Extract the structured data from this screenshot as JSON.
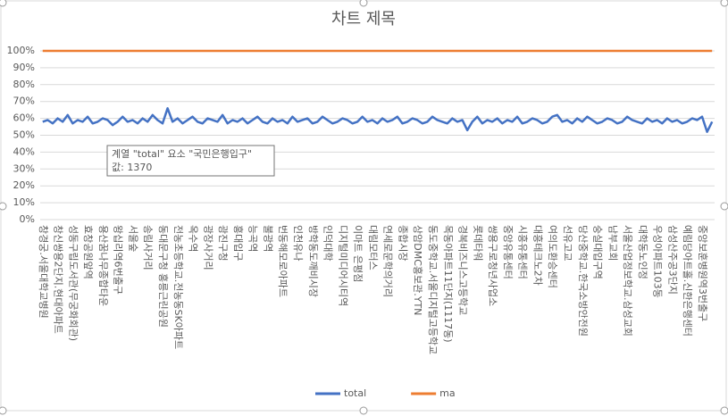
{
  "chart_data": {
    "type": "line",
    "title": "차트 제목",
    "categories": [
      "창경궁.서울대학교병원",
      null,
      null,
      "창신쌍용2단지.현대아파트",
      null,
      null,
      "성동구립도서관(무궁화회관)",
      null,
      null,
      "효창공원앞역",
      null,
      null,
      "용산꿈나무종합타운",
      null,
      null,
      "왕십리역6번출구",
      null,
      null,
      "서울숲",
      null,
      null,
      "송림사거리",
      null,
      null,
      "동대문구청 홍릉근린공원",
      null,
      null,
      "전농초등학교.전농동SK아파트",
      null,
      null,
      "옥수역",
      null,
      null,
      "광장사거리",
      null,
      null,
      "광진구청",
      null,
      null,
      "홍대입구",
      null,
      null,
      "능곡역",
      null,
      null,
      "불광역",
      null,
      null,
      "번동해모로아파트",
      null,
      null,
      "인천유나",
      null,
      null,
      "방학동도깨비시장",
      null,
      null,
      "인덕대학",
      null,
      null,
      "디지털미디어시티역",
      null,
      null,
      "이마트 은평점",
      null,
      null,
      "대림모터스",
      null,
      null,
      "연세로문학의거리",
      null,
      null,
      "종합시장",
      null,
      null,
      "상암DMC홍보관.YTN",
      null,
      null,
      "동도중학교.서울디지털고등학교",
      null,
      null,
      "목동아파트11단지(1117동)",
      null,
      null,
      "경복비즈니스고등학교",
      null,
      null,
      "롯데타워",
      null,
      null,
      "쌍용구로청년사업소",
      null,
      null,
      "중앙유통센터",
      null,
      null,
      "시흥유통센터",
      null,
      null,
      "대흥테크노2차",
      null,
      null,
      "여의도환승센터",
      null,
      null,
      "선유고교",
      null,
      null,
      "당산중학교.한국소방안전원",
      null,
      null,
      "숭실대입구역",
      null,
      null,
      "남부교회",
      null,
      null,
      "서울산업정보학교.삼성교회",
      null,
      null,
      "대학동노인정",
      null,
      null,
      "우성아파트103동",
      null,
      null,
      "삼성산주공3단지",
      null,
      null,
      "예림당아트홀.신한은행센터",
      null,
      null,
      "중앙보훈병원역3번출구",
      null,
      null
    ],
    "series": [
      {
        "name": "total",
        "color": "#4472c4",
        "values": [
          58,
          59,
          57,
          60,
          58,
          62,
          57,
          59,
          58,
          61,
          57,
          58,
          60,
          59,
          56,
          58,
          61,
          58,
          59,
          57,
          60,
          58,
          62,
          59,
          57,
          66,
          58,
          60,
          57,
          59,
          61,
          58,
          57,
          60,
          59,
          58,
          62,
          57,
          59,
          58,
          60,
          57,
          59,
          61,
          58,
          57,
          60,
          58,
          59,
          57,
          61,
          58,
          59,
          60,
          57,
          58,
          61,
          59,
          57,
          58,
          60,
          59,
          57,
          58,
          61,
          58,
          59,
          57,
          60,
          58,
          59,
          61,
          57,
          58,
          60,
          59,
          57,
          58,
          61,
          59,
          58,
          57,
          60,
          58,
          59,
          53,
          58,
          61,
          57,
          59,
          58,
          60,
          57,
          59,
          58,
          61,
          57,
          58,
          60,
          59,
          57,
          58,
          61,
          62,
          58,
          59,
          57,
          60,
          58,
          61,
          59,
          57,
          58,
          60,
          59,
          57,
          58,
          61,
          59,
          58,
          57,
          60,
          58,
          59,
          57,
          60,
          58,
          59,
          57,
          58,
          60,
          59,
          61,
          52,
          58
        ]
      },
      {
        "name": "ma",
        "color": "#ed7d31",
        "values": [
          100,
          100,
          100,
          100,
          100,
          100,
          100,
          100,
          100,
          100,
          100,
          100,
          100,
          100,
          100,
          100,
          100,
          100,
          100,
          100,
          100,
          100,
          100,
          100,
          100,
          100,
          100,
          100,
          100,
          100,
          100,
          100,
          100,
          100,
          100,
          100,
          100,
          100,
          100,
          100,
          100,
          100,
          100,
          100,
          100,
          100,
          100,
          100,
          100,
          100,
          100,
          100,
          100,
          100,
          100,
          100,
          100,
          100,
          100,
          100,
          100,
          100,
          100,
          100,
          100,
          100,
          100,
          100,
          100,
          100,
          100,
          100,
          100,
          100,
          100,
          100,
          100,
          100,
          100,
          100,
          100,
          100,
          100,
          100,
          100,
          100,
          100,
          100,
          100,
          100,
          100,
          100,
          100,
          100,
          100,
          100,
          100,
          100,
          100,
          100,
          100,
          100,
          100,
          100,
          100,
          100,
          100,
          100,
          100,
          100,
          100,
          100,
          100,
          100,
          100,
          100,
          100,
          100,
          100,
          100,
          100,
          100,
          100,
          100,
          100,
          100,
          100,
          100,
          100,
          100,
          100,
          100,
          100,
          100,
          100
        ]
      }
    ],
    "ylim": [
      0,
      100
    ],
    "yticks": [
      {
        "value": 0,
        "label": "0%"
      },
      {
        "value": 10,
        "label": "10%"
      },
      {
        "value": 20,
        "label": "20%"
      },
      {
        "value": 30,
        "label": "30%"
      },
      {
        "value": 40,
        "label": "40%"
      },
      {
        "value": 50,
        "label": "50%"
      },
      {
        "value": 60,
        "label": "60%"
      },
      {
        "value": 70,
        "label": "70%"
      },
      {
        "value": 80,
        "label": "80%"
      },
      {
        "value": 90,
        "label": "90%"
      },
      {
        "value": 100,
        "label": "100%"
      }
    ],
    "grid": true,
    "legend": "bottom",
    "tooltip": {
      "line1": "계열 \"total\" 요소 \"국민은행입구\"",
      "line2": "값: 1370"
    }
  }
}
